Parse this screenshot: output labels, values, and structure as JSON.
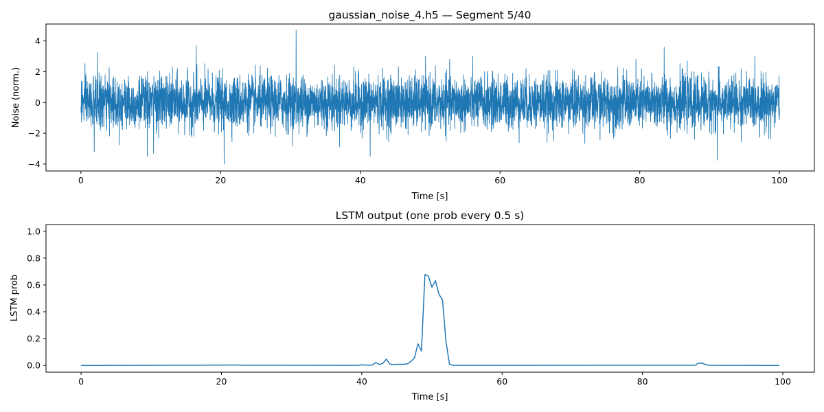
{
  "chart_data": [
    {
      "type": "line",
      "title": "gaussian_noise_4.h5 — Segment 5/40",
      "xlabel": "Time [s]",
      "ylabel": "Noise (norm.)",
      "xlim": [
        -5,
        105
      ],
      "ylim": [
        -4.45,
        5.1
      ],
      "xticks": [
        0,
        20,
        40,
        60,
        80,
        100
      ],
      "yticks": [
        -4,
        -2,
        0,
        2,
        4
      ],
      "xtick_labels": [
        "0",
        "20",
        "40",
        "60",
        "80",
        "100"
      ],
      "ytick_labels": [
        "−4",
        "−2",
        "0",
        "2",
        "4"
      ],
      "color": "#1f77b4",
      "series": [
        {
          "name": "noise",
          "x_start": 0,
          "x_end": 100,
          "distribution": "gaussian",
          "mean": 0,
          "std": 0.85,
          "peaks": [
            {
              "x": 30.8,
              "y": 4.7
            },
            {
              "x": 16.5,
              "y": 3.7
            },
            {
              "x": 2.4,
              "y": 3.25
            },
            {
              "x": 83.5,
              "y": 3.6
            },
            {
              "x": 20.5,
              "y": -4.0
            },
            {
              "x": 91.1,
              "y": -3.75
            },
            {
              "x": 41.4,
              "y": -3.5
            },
            {
              "x": 9.5,
              "y": -3.5
            },
            {
              "x": 10.4,
              "y": -3.3
            },
            {
              "x": 1.9,
              "y": -3.2
            }
          ]
        }
      ]
    },
    {
      "type": "line",
      "title": "LSTM output (one prob every 0.5 s)",
      "xlabel": "Time [s]",
      "ylabel": "LSTM prob",
      "xlim": [
        -5,
        104.5
      ],
      "ylim": [
        -0.05,
        1.05
      ],
      "xticks": [
        0,
        20,
        40,
        60,
        80,
        100
      ],
      "yticks": [
        0.0,
        0.2,
        0.4,
        0.6,
        0.8,
        1.0
      ],
      "xtick_labels": [
        "0",
        "20",
        "40",
        "60",
        "80",
        "100"
      ],
      "ytick_labels": [
        "0.0",
        "0.2",
        "0.4",
        "0.6",
        "0.8",
        "1.0"
      ],
      "color": "#1f77b4",
      "series": [
        {
          "name": "LSTM prob",
          "x": [
            0,
            22,
            24,
            39.5,
            40,
            40.5,
            41,
            41.5,
            42,
            42.5,
            43,
            43.5,
            44,
            44.5,
            45,
            45.5,
            46,
            46.5,
            47,
            47.5,
            48,
            48.5,
            49,
            49.5,
            50,
            50.5,
            51,
            51.5,
            52,
            52.5,
            53,
            87.5,
            88,
            88.5,
            89,
            89.5,
            90,
            99.5
          ],
          "y": [
            0.0,
            0.003,
            0.002,
            0.001,
            0.005,
            0.003,
            0.002,
            0.004,
            0.021,
            0.007,
            0.016,
            0.047,
            0.01,
            0.007,
            0.008,
            0.009,
            0.009,
            0.012,
            0.03,
            0.055,
            0.162,
            0.108,
            0.678,
            0.665,
            0.583,
            0.632,
            0.53,
            0.49,
            0.178,
            0.01,
            0.001,
            0.002,
            0.017,
            0.018,
            0.006,
            0.002,
            0.001,
            0.0
          ]
        }
      ]
    }
  ]
}
